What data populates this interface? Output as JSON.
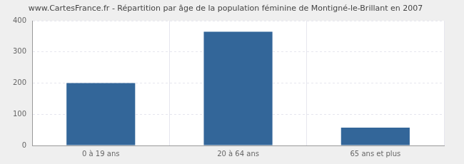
{
  "chart_data": {
    "type": "bar",
    "title": "www.CartesFrance.fr - Répartition par âge de la population féminine de Montigné-le-Brillant en 2007",
    "categories": [
      "0 à 19 ans",
      "20 à 64 ans",
      "65 ans et plus"
    ],
    "values": [
      200,
      365,
      57
    ],
    "color": "#336699",
    "ylim": [
      0,
      400
    ],
    "yticks": [
      0,
      100,
      200,
      300,
      400
    ],
    "grid": true
  }
}
